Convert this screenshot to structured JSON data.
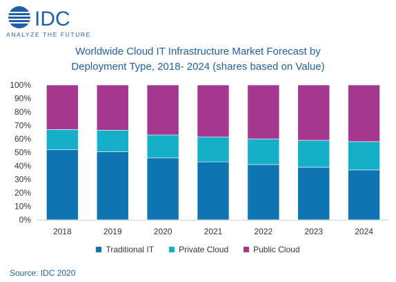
{
  "logo": {
    "brand": "IDC",
    "tagline": "ANALYZE THE FUTURE",
    "brand_color": "#1f5fa8"
  },
  "chart_data": {
    "type": "bar",
    "stacked": true,
    "title_line1": "Worldwide Cloud IT Infrastructure Market Forecast by",
    "title_line2": "Deployment Type, 2018- 2024 (shares based on Value)",
    "categories": [
      "2018",
      "2019",
      "2020",
      "2021",
      "2022",
      "2023",
      "2024"
    ],
    "series": [
      {
        "name": "Traditional IT",
        "color": "#0f74b2",
        "values": [
          52,
          50.5,
          46,
          43,
          41,
          39,
          37
        ]
      },
      {
        "name": "Private Cloud",
        "color": "#16afc8",
        "values": [
          15,
          16,
          17,
          18.5,
          19,
          20,
          21
        ]
      },
      {
        "name": "Public Cloud",
        "color": "#a3388e",
        "values": [
          33,
          33.5,
          37,
          38.5,
          40,
          41,
          42
        ]
      }
    ],
    "ylim": [
      0,
      100
    ],
    "yticks": [
      "0%",
      "10%",
      "20%",
      "30%",
      "40%",
      "50%",
      "60%",
      "70%",
      "80%",
      "90%",
      "100%"
    ],
    "legend_position": "bottom",
    "grid": false
  },
  "source": "Source: IDC 2020"
}
